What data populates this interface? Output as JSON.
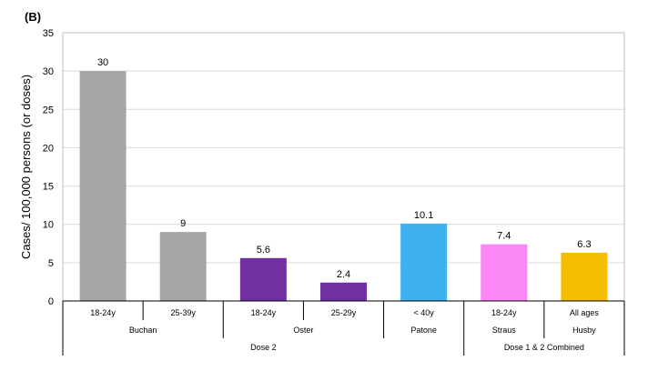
{
  "panel_label": "(B)",
  "chart_data": {
    "type": "bar",
    "title": "",
    "xlabel": "",
    "ylabel": "Cases/ 100,000 persons (or doses)",
    "ylim": [
      0,
      35
    ],
    "yticks": [
      0,
      5,
      10,
      15,
      20,
      25,
      30,
      35
    ],
    "grid": true,
    "categories": [
      "18-24y",
      "25-39y",
      "18-24y",
      "25-29y",
      "< 40y",
      "18-24y",
      "All ages"
    ],
    "values": [
      30,
      9,
      5.6,
      2.4,
      10.1,
      7.4,
      6.3
    ],
    "data_labels": [
      "30",
      "9",
      "5.6",
      "2.4",
      "10.1",
      "7.4",
      "6.3"
    ],
    "colors": [
      "#a6a6a6",
      "#a6a6a6",
      "#7030a0",
      "#7030a0",
      "#3fb0f0",
      "#f987f4",
      "#f5bd00"
    ],
    "study_groups": [
      {
        "label": "Buchan",
        "span": [
          0,
          1
        ]
      },
      {
        "label": "Oster",
        "span": [
          2,
          3
        ]
      },
      {
        "label": "Patone",
        "span": [
          4,
          4
        ]
      },
      {
        "label": "Straus",
        "span": [
          5,
          5
        ]
      },
      {
        "label": "Husby",
        "span": [
          6,
          6
        ]
      }
    ],
    "dose_groups": [
      {
        "label": "Dose 2",
        "span": [
          0,
          4
        ]
      },
      {
        "label": "Dose 1 & 2 Combined",
        "span": [
          5,
          6
        ]
      }
    ]
  }
}
